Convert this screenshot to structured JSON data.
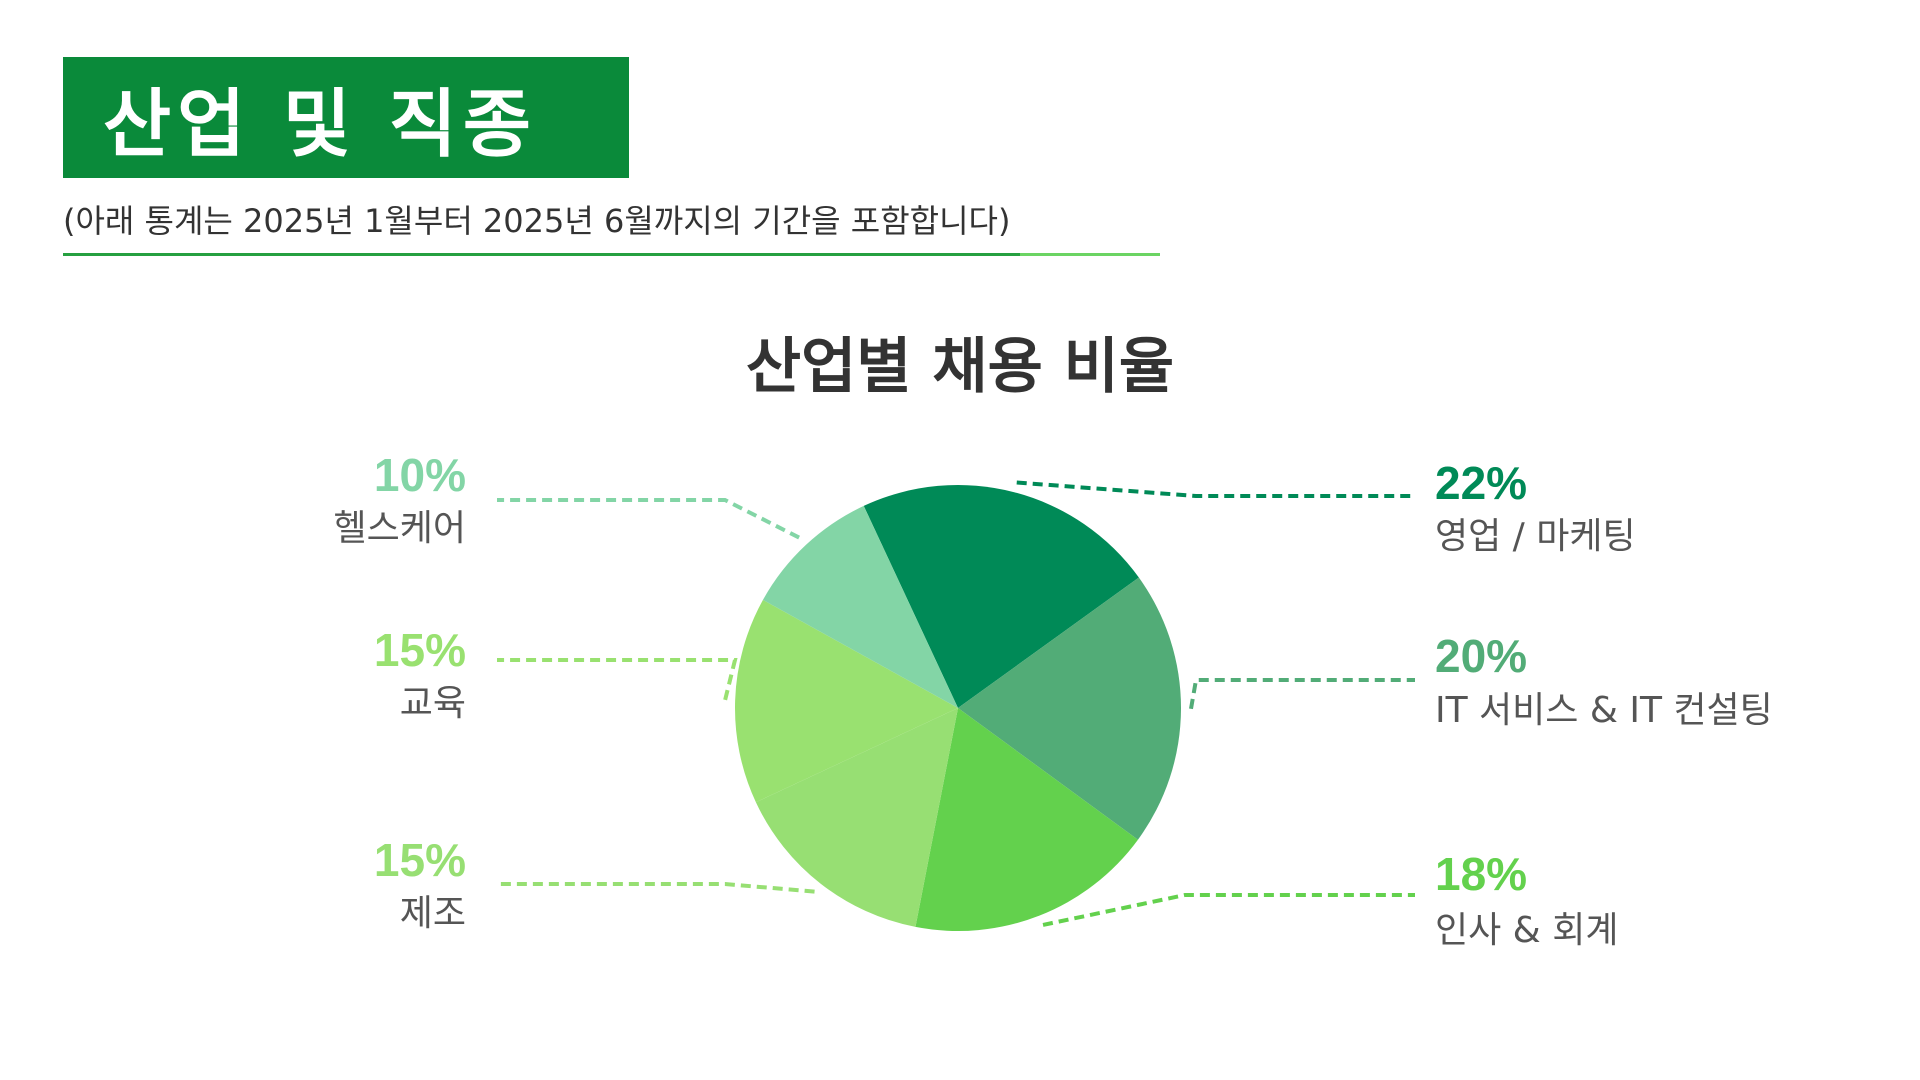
{
  "header": {
    "title": "산업 및 직종",
    "subtitle": "(아래 통계는 2025년 1월부터 2025년 6월까지의 기간을 포함합니다)"
  },
  "colors": {
    "title_bg": "#0a8a3a",
    "rule_dark": "#26a040",
    "rule_light": "#6bd463"
  },
  "chart_data": {
    "type": "pie",
    "title": "산업별 채용 비율",
    "series": [
      {
        "label": "영업 / 마케팅",
        "value": 22,
        "pct_text": "22%",
        "color": "#008a57"
      },
      {
        "label": "IT 서비스 & IT 컨설팅",
        "value": 20,
        "pct_text": "20%",
        "color": "#52ac77"
      },
      {
        "label": "인사 & 회계",
        "value": 18,
        "pct_text": "18%",
        "color": "#63d14d"
      },
      {
        "label": "제조",
        "value": 15,
        "pct_text": "15%",
        "color": "#97df73"
      },
      {
        "label": "교육",
        "value": 15,
        "pct_text": "15%",
        "color": "#99e170"
      },
      {
        "label": "헬스케어",
        "value": 10,
        "pct_text": "10%",
        "color": "#83d5a6"
      }
    ]
  }
}
